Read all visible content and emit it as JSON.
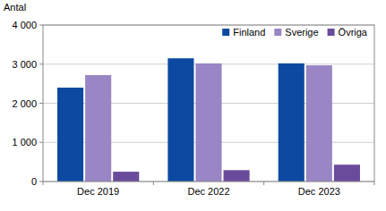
{
  "chart_data": {
    "type": "bar",
    "y_label": "Antal",
    "categories": [
      "Dec 2019",
      "Dec 2022",
      "Dec 2023"
    ],
    "series": [
      {
        "name": "Finland",
        "color": "#0b4aa0",
        "values": [
          2400,
          3150,
          3020
        ]
      },
      {
        "name": "Sverige",
        "color": "#9a85c5",
        "values": [
          2720,
          3020,
          2970
        ]
      },
      {
        "name": "Övriga",
        "color": "#6a4b9b",
        "values": [
          250,
          290,
          430
        ]
      }
    ],
    "ylim": [
      0,
      4000
    ],
    "yticks": [
      0,
      {
        "value": 1000,
        "label": "1 000"
      },
      {
        "value": 2000,
        "label": "2 000"
      },
      {
        "value": 3000,
        "label": "3 000"
      },
      {
        "value": 4000,
        "label": "4 000"
      }
    ],
    "grid": true,
    "legend": "upper right"
  }
}
